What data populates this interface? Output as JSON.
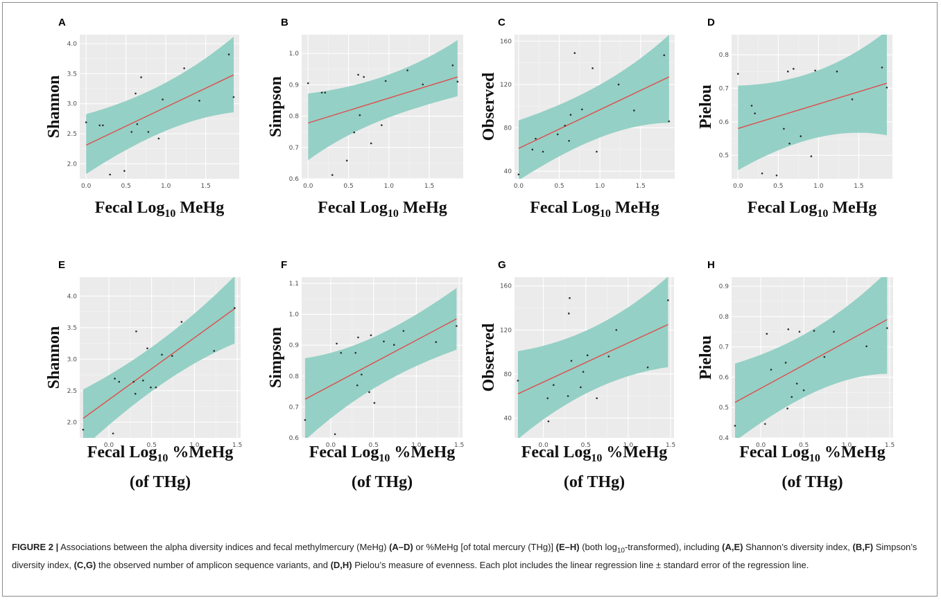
{
  "caption": {
    "label": "FIGURE 2 |",
    "parts": [
      {
        "t": " Associations between the alpha diversity indices and fecal methylmercury (MeHg) "
      },
      {
        "t": "(A–D)",
        "b": true
      },
      {
        "t": " or %MeHg [of total mercury (THg)] "
      },
      {
        "t": "(E–H)",
        "b": true
      },
      {
        "t": " (both log"
      },
      {
        "t": "10",
        "sub": true
      },
      {
        "t": "-transformed), including "
      },
      {
        "t": "(A,E)",
        "b": true
      },
      {
        "t": " Shannon’s diversity index, "
      },
      {
        "t": "(B,F)",
        "b": true
      },
      {
        "t": " Simpson’s diversity index, "
      },
      {
        "t": "(C,G)",
        "b": true
      },
      {
        "t": " the observed number of amplicon sequence variants, and "
      },
      {
        "t": "(D,H)",
        "b": true
      },
      {
        "t": " Pielou’s measure of evenness. Each plot includes the linear regression line ± standard error of the regression line."
      }
    ]
  },
  "chart_data": [
    {
      "panel": "A",
      "type": "scatter",
      "xlabel": {
        "pre": "Fecal Log",
        "sub": "10",
        "post": " MeHg"
      },
      "ylabel": "Shannon",
      "xlim": [
        -0.08,
        1.92
      ],
      "ylim": [
        1.75,
        4.15
      ],
      "xticks": [
        {
          "v": 0,
          "l": "0.0"
        },
        {
          "v": 0.5,
          "l": "0.5"
        },
        {
          "v": 1.0,
          "l": "1.0"
        },
        {
          "v": 1.5,
          "l": "1.5"
        }
      ],
      "yticks": [
        {
          "v": 2.0,
          "l": "2.0"
        },
        {
          "v": 2.5,
          "l": "2.5"
        },
        {
          "v": 3.0,
          "l": "3.0"
        },
        {
          "v": 3.5,
          "l": "3.5"
        },
        {
          "v": 4.0,
          "l": "4.0"
        }
      ],
      "points": [
        [
          0.0,
          2.69
        ],
        [
          0.17,
          2.64
        ],
        [
          0.21,
          2.64
        ],
        [
          0.3,
          1.82
        ],
        [
          0.48,
          1.88
        ],
        [
          0.57,
          2.53
        ],
        [
          0.62,
          3.17
        ],
        [
          0.64,
          2.66
        ],
        [
          0.69,
          3.44
        ],
        [
          0.78,
          2.53
        ],
        [
          0.91,
          2.42
        ],
        [
          0.96,
          3.07
        ],
        [
          1.23,
          3.59
        ],
        [
          1.42,
          3.05
        ],
        [
          1.79,
          3.82
        ],
        [
          1.85,
          3.11
        ]
      ],
      "fit": [
        2.31,
        3.48
      ],
      "band_lower": [
        1.9,
        2.95
      ],
      "band_upper": [
        2.75,
        4.02
      ],
      "colors": {
        "panel": "#ebebeb",
        "band": "#8fcfc3",
        "line": "#e04b4b",
        "point": "#2b2b2b"
      }
    },
    {
      "panel": "B",
      "type": "scatter",
      "xlabel": {
        "pre": "Fecal Log",
        "sub": "10",
        "post": " MeHg"
      },
      "ylabel": "Simpson",
      "xlim": [
        -0.08,
        1.92
      ],
      "ylim": [
        0.6,
        1.06
      ],
      "xticks": [
        {
          "v": 0,
          "l": "0.0"
        },
        {
          "v": 0.5,
          "l": "0.5"
        },
        {
          "v": 1.0,
          "l": "1.0"
        },
        {
          "v": 1.5,
          "l": "1.5"
        }
      ],
      "yticks": [
        {
          "v": 0.6,
          "l": "0.6"
        },
        {
          "v": 0.7,
          "l": "0.7"
        },
        {
          "v": 0.8,
          "l": "0.8"
        },
        {
          "v": 0.9,
          "l": "0.9"
        },
        {
          "v": 1.0,
          "l": "1.0"
        }
      ],
      "points": [
        [
          0.0,
          0.905
        ],
        [
          0.17,
          0.875
        ],
        [
          0.21,
          0.875
        ],
        [
          0.3,
          0.612
        ],
        [
          0.48,
          0.658
        ],
        [
          0.57,
          0.748
        ],
        [
          0.62,
          0.932
        ],
        [
          0.64,
          0.803
        ],
        [
          0.69,
          0.925
        ],
        [
          0.78,
          0.713
        ],
        [
          0.91,
          0.771
        ],
        [
          0.96,
          0.912
        ],
        [
          1.23,
          0.946
        ],
        [
          1.42,
          0.901
        ],
        [
          1.79,
          0.962
        ],
        [
          1.85,
          0.91
        ]
      ],
      "fit": [
        0.778,
        0.925
      ],
      "band_lower": [
        0.677,
        0.873
      ],
      "band_upper": [
        0.858,
        1.025
      ],
      "colors": {
        "panel": "#ebebeb",
        "band": "#8fcfc3",
        "line": "#e04b4b",
        "point": "#2b2b2b"
      }
    },
    {
      "panel": "C",
      "type": "scatter",
      "xlabel": {
        "pre": "Fecal Log",
        "sub": "10",
        "post": " MeHg"
      },
      "ylabel": "Observed",
      "xlim": [
        -0.05,
        1.92
      ],
      "ylim": [
        33,
        166
      ],
      "xticks": [
        {
          "v": 0,
          "l": "0.0"
        },
        {
          "v": 0.5,
          "l": "0.5"
        },
        {
          "v": 1.0,
          "l": "1.0"
        },
        {
          "v": 1.5,
          "l": "1.5"
        }
      ],
      "yticks": [
        {
          "v": 40,
          "l": "40"
        },
        {
          "v": 80,
          "l": "80"
        },
        {
          "v": 120,
          "l": "120"
        },
        {
          "v": 160,
          "l": "160"
        }
      ],
      "points": [
        [
          0.0,
          37
        ],
        [
          0.17,
          60
        ],
        [
          0.21,
          70
        ],
        [
          0.3,
          58
        ],
        [
          0.48,
          74
        ],
        [
          0.57,
          82
        ],
        [
          0.62,
          68
        ],
        [
          0.64,
          92
        ],
        [
          0.69,
          149
        ],
        [
          0.78,
          97
        ],
        [
          0.91,
          135
        ],
        [
          0.96,
          58
        ],
        [
          1.23,
          120
        ],
        [
          1.42,
          96
        ],
        [
          1.79,
          147
        ],
        [
          1.85,
          86
        ]
      ],
      "fit": [
        61,
        127
      ],
      "band_lower": [
        36,
        91
      ],
      "band_upper": [
        83,
        160
      ],
      "colors": {
        "panel": "#ebebeb",
        "band": "#8fcfc3",
        "line": "#e04b4b",
        "point": "#2b2b2b"
      }
    },
    {
      "panel": "D",
      "type": "scatter",
      "xlabel": {
        "pre": "Fecal Log",
        "sub": "10",
        "post": " MeHg"
      },
      "ylabel": "Pielou",
      "xlim": [
        -0.08,
        1.92
      ],
      "ylim": [
        0.43,
        0.86
      ],
      "xticks": [
        {
          "v": 0,
          "l": "0.0"
        },
        {
          "v": 0.5,
          "l": "0.5"
        },
        {
          "v": 1.0,
          "l": "1.0"
        },
        {
          "v": 1.5,
          "l": "1.5"
        }
      ],
      "yticks": [
        {
          "v": 0.5,
          "l": "0.5"
        },
        {
          "v": 0.6,
          "l": "0.6"
        },
        {
          "v": 0.7,
          "l": "0.7"
        },
        {
          "v": 0.8,
          "l": "0.8"
        }
      ],
      "points": [
        [
          0.0,
          0.743
        ],
        [
          0.17,
          0.648
        ],
        [
          0.21,
          0.625
        ],
        [
          0.3,
          0.446
        ],
        [
          0.48,
          0.44
        ],
        [
          0.57,
          0.579
        ],
        [
          0.62,
          0.75
        ],
        [
          0.64,
          0.535
        ],
        [
          0.69,
          0.758
        ],
        [
          0.78,
          0.557
        ],
        [
          0.91,
          0.497
        ],
        [
          0.96,
          0.753
        ],
        [
          1.23,
          0.75
        ],
        [
          1.42,
          0.667
        ],
        [
          1.79,
          0.762
        ],
        [
          1.85,
          0.702
        ]
      ],
      "fit": [
        0.58,
        0.715
      ],
      "band_lower": [
        0.474,
        0.583
      ],
      "band_upper": [
        0.689,
        0.848
      ],
      "colors": {
        "panel": "#ebebeb",
        "band": "#8fcfc3",
        "line": "#e04b4b",
        "point": "#2b2b2b"
      }
    },
    {
      "panel": "E",
      "type": "scatter",
      "xlabel": {
        "pre": "Fecal Log",
        "sub": "10",
        "post": " %MeHg",
        "line2": "(of THg)"
      },
      "ylabel": "Shannon",
      "xlim": [
        -0.34,
        1.54
      ],
      "ylim": [
        1.75,
        4.3
      ],
      "xticks": [
        {
          "v": 0,
          "l": "0.0"
        },
        {
          "v": 0.5,
          "l": "0.5"
        },
        {
          "v": 1.0,
          "l": "1.0"
        },
        {
          "v": 1.5,
          "l": "1.5"
        }
      ],
      "yticks": [
        {
          "v": 2.0,
          "l": "2.0"
        },
        {
          "v": 2.5,
          "l": "2.5"
        },
        {
          "v": 3.0,
          "l": "3.0"
        },
        {
          "v": 3.5,
          "l": "3.5"
        },
        {
          "v": 4.0,
          "l": "4.0"
        }
      ],
      "points": [
        [
          -0.3,
          1.88
        ],
        [
          0.05,
          1.82
        ],
        [
          0.07,
          2.69
        ],
        [
          0.12,
          2.64
        ],
        [
          0.29,
          2.64
        ],
        [
          0.31,
          2.45
        ],
        [
          0.32,
          3.44
        ],
        [
          0.4,
          2.66
        ],
        [
          0.45,
          3.17
        ],
        [
          0.49,
          2.55
        ],
        [
          0.55,
          2.55
        ],
        [
          0.62,
          3.07
        ],
        [
          0.74,
          3.05
        ],
        [
          0.85,
          3.59
        ],
        [
          1.23,
          3.13
        ],
        [
          1.47,
          3.81
        ]
      ],
      "fit": [
        2.06,
        3.8
      ],
      "band_lower": [
        1.66,
        3.33
      ],
      "band_upper": [
        2.45,
        4.24
      ],
      "colors": {
        "panel": "#ebebeb",
        "band": "#8fcfc3",
        "line": "#e04b4b",
        "point": "#2b2b2b"
      }
    },
    {
      "panel": "F",
      "type": "scatter",
      "xlabel": {
        "pre": "Fecal Log",
        "sub": "10",
        "post": " %MeHg",
        "line2": "(of THg)"
      },
      "ylabel": "Simpson",
      "xlim": [
        -0.34,
        1.54
      ],
      "ylim": [
        0.6,
        1.12
      ],
      "xticks": [
        {
          "v": 0,
          "l": "0.0"
        },
        {
          "v": 0.5,
          "l": "0.5"
        },
        {
          "v": 1.0,
          "l": "1.0"
        },
        {
          "v": 1.5,
          "l": "1.5"
        }
      ],
      "yticks": [
        {
          "v": 0.6,
          "l": "0.6"
        },
        {
          "v": 0.7,
          "l": "0.7"
        },
        {
          "v": 0.8,
          "l": "0.8"
        },
        {
          "v": 0.9,
          "l": "0.9"
        },
        {
          "v": 1.0,
          "l": "1.0"
        },
        {
          "v": 1.1,
          "l": "1.1"
        }
      ],
      "points": [
        [
          -0.3,
          0.658
        ],
        [
          0.05,
          0.612
        ],
        [
          0.07,
          0.905
        ],
        [
          0.12,
          0.875
        ],
        [
          0.29,
          0.875
        ],
        [
          0.31,
          0.77
        ],
        [
          0.32,
          0.925
        ],
        [
          0.36,
          0.805
        ],
        [
          0.45,
          0.748
        ],
        [
          0.47,
          0.932
        ],
        [
          0.51,
          0.713
        ],
        [
          0.62,
          0.912
        ],
        [
          0.74,
          0.901
        ],
        [
          0.85,
          0.946
        ],
        [
          1.23,
          0.91
        ],
        [
          1.47,
          0.962
        ]
      ],
      "fit": [
        0.725,
        0.985
      ],
      "band_lower": [
        0.612,
        0.9
      ],
      "band_upper": [
        0.838,
        1.07
      ],
      "colors": {
        "panel": "#ebebeb",
        "band": "#8fcfc3",
        "line": "#e04b4b",
        "point": "#2b2b2b"
      }
    },
    {
      "panel": "G",
      "type": "scatter",
      "xlabel": {
        "pre": "Fecal Log",
        "sub": "10",
        "post": " %MeHg",
        "line2": "(of THg)"
      },
      "ylabel": "Observed",
      "xlim": [
        -0.34,
        1.54
      ],
      "ylim": [
        22,
        168
      ],
      "xticks": [
        {
          "v": 0,
          "l": "0.0"
        },
        {
          "v": 0.5,
          "l": "0.5"
        },
        {
          "v": 1.0,
          "l": "1.0"
        },
        {
          "v": 1.5,
          "l": "1.5"
        }
      ],
      "yticks": [
        {
          "v": 40,
          "l": "40"
        },
        {
          "v": 80,
          "l": "80"
        },
        {
          "v": 120,
          "l": "120"
        },
        {
          "v": 160,
          "l": "160"
        }
      ],
      "points": [
        [
          -0.3,
          74
        ],
        [
          0.05,
          58
        ],
        [
          0.06,
          37
        ],
        [
          0.12,
          70
        ],
        [
          0.29,
          60
        ],
        [
          0.3,
          135
        ],
        [
          0.31,
          149
        ],
        [
          0.33,
          92
        ],
        [
          0.44,
          68
        ],
        [
          0.47,
          82
        ],
        [
          0.52,
          97
        ],
        [
          0.63,
          58
        ],
        [
          0.77,
          96
        ],
        [
          0.86,
          120
        ],
        [
          1.23,
          86
        ],
        [
          1.47,
          147
        ]
      ],
      "fit": [
        62,
        125
      ],
      "band_lower": [
        27,
        92
      ],
      "band_upper": [
        95,
        162
      ],
      "colors": {
        "panel": "#ebebeb",
        "band": "#8fcfc3",
        "line": "#e04b4b",
        "point": "#2b2b2b"
      }
    },
    {
      "panel": "H",
      "type": "scatter",
      "xlabel": {
        "pre": "Fecal Log",
        "sub": "10",
        "post": " %MeHg",
        "line2": "(of THg)"
      },
      "ylabel": "Pielou",
      "xlim": [
        -0.34,
        1.54
      ],
      "ylim": [
        0.4,
        0.93
      ],
      "xticks": [
        {
          "v": 0,
          "l": "0.0"
        },
        {
          "v": 0.5,
          "l": "0.5"
        },
        {
          "v": 1.0,
          "l": "1.0"
        },
        {
          "v": 1.5,
          "l": "1.5"
        }
      ],
      "yticks": [
        {
          "v": 0.4,
          "l": "0.4"
        },
        {
          "v": 0.5,
          "l": "0.5"
        },
        {
          "v": 0.6,
          "l": "0.6"
        },
        {
          "v": 0.7,
          "l": "0.7"
        },
        {
          "v": 0.8,
          "l": "0.8"
        },
        {
          "v": 0.9,
          "l": "0.9"
        }
      ],
      "points": [
        [
          -0.3,
          0.44
        ],
        [
          0.05,
          0.446
        ],
        [
          0.07,
          0.743
        ],
        [
          0.12,
          0.625
        ],
        [
          0.29,
          0.648
        ],
        [
          0.31,
          0.497
        ],
        [
          0.32,
          0.758
        ],
        [
          0.36,
          0.535
        ],
        [
          0.42,
          0.579
        ],
        [
          0.45,
          0.75
        ],
        [
          0.5,
          0.557
        ],
        [
          0.62,
          0.753
        ],
        [
          0.74,
          0.667
        ],
        [
          0.85,
          0.75
        ],
        [
          1.23,
          0.702
        ],
        [
          1.47,
          0.762
        ]
      ],
      "fit": [
        0.517,
        0.79
      ],
      "band_lower": [
        0.408,
        0.638
      ],
      "band_upper": [
        0.626,
        0.925
      ],
      "colors": {
        "panel": "#ebebeb",
        "band": "#8fcfc3",
        "line": "#e04b4b",
        "point": "#2b2b2b"
      }
    }
  ]
}
